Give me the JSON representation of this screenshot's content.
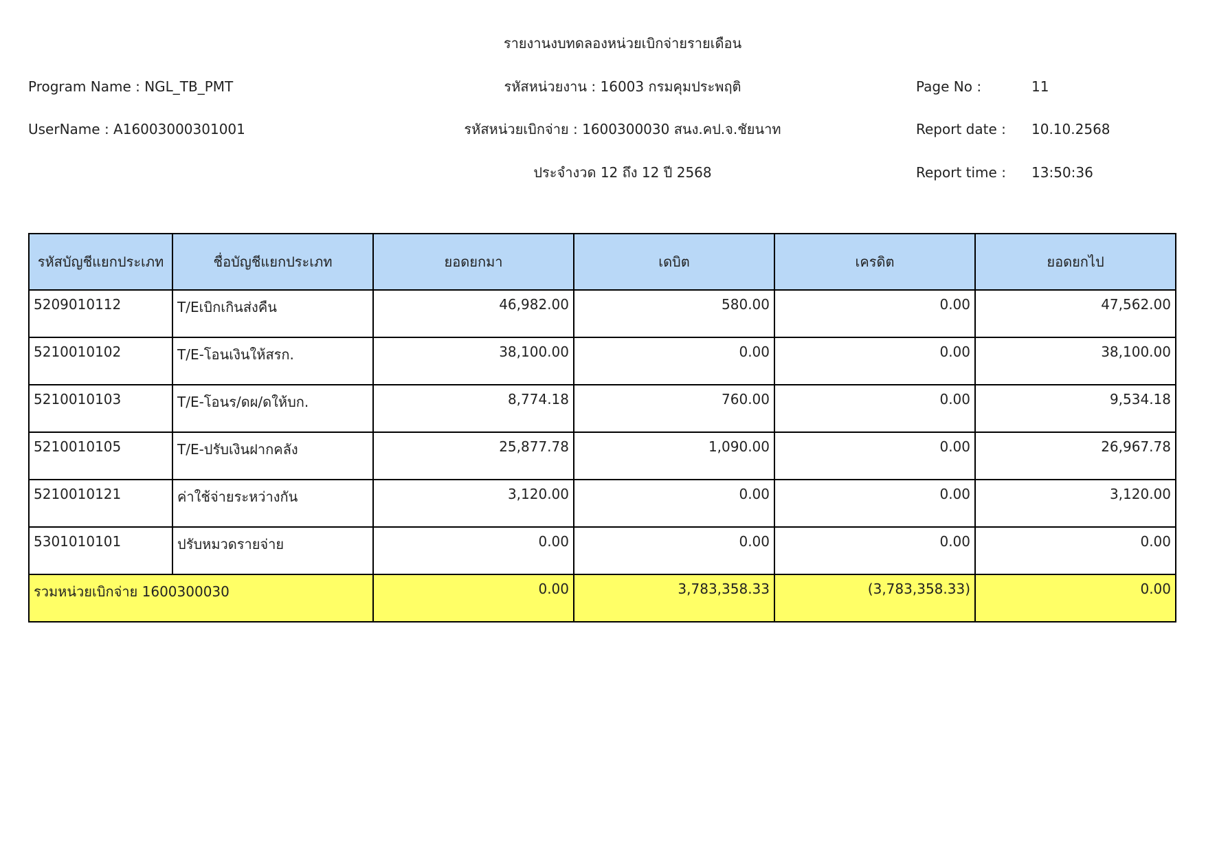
{
  "header": {
    "title": "รายงานงบทดลองหน่วยเบิกจ่ายรายเดือน",
    "program_name": "Program Name : NGL_TB_PMT",
    "username": "UserName : A16003000301001",
    "agency": "รหัสหน่วยงาน : 16003 กรมคุมประพฤติ",
    "disbursement_unit": "รหัสหน่วยเบิกจ่าย : 1600300030 สนง.คป.จ.ชัยนาท",
    "period": "ประจำงวด 12 ถึง 12 ปี 2568",
    "page_no_label": "Page No :",
    "page_no": "11",
    "report_date_label": "Report date :",
    "report_date": "10.10.2568",
    "report_time_label": "Report time :",
    "report_time": "13:50:36"
  },
  "table": {
    "columns": [
      "รหัสบัญชีแยกประเภท",
      "ชื่อบัญชีแยกประเภท",
      "ยอดยกมา",
      "เดบิต",
      "เครดิต",
      "ยอดยกไป"
    ],
    "rows": [
      [
        "5209010112",
        "T/Eเบิกเกินส่งคืน",
        "46,982.00",
        "580.00",
        "0.00",
        "47,562.00"
      ],
      [
        "5210010102",
        "T/E-โอนเงินให้สรก.",
        "38,100.00",
        "0.00",
        "0.00",
        "38,100.00"
      ],
      [
        "5210010103",
        "T/E-โอนร/ดผ/ดให้บก.",
        "8,774.18",
        "760.00",
        "0.00",
        "9,534.18"
      ],
      [
        "5210010105",
        "T/E-ปรับเงินฝากคลัง",
        "25,877.78",
        "1,090.00",
        "0.00",
        "26,967.78"
      ],
      [
        "5210010121",
        "ค่าใช้จ่ายระหว่างกัน",
        "3,120.00",
        "0.00",
        "0.00",
        "3,120.00"
      ],
      [
        "5301010101",
        "ปรับหมวดรายจ่าย",
        "0.00",
        "0.00",
        "0.00",
        "0.00"
      ]
    ],
    "total": [
      "รวมหน่วยเบิกจ่าย 1600300030",
      "0.00",
      "3,783,358.33",
      "(3,783,358.33)",
      "0.00"
    ]
  }
}
